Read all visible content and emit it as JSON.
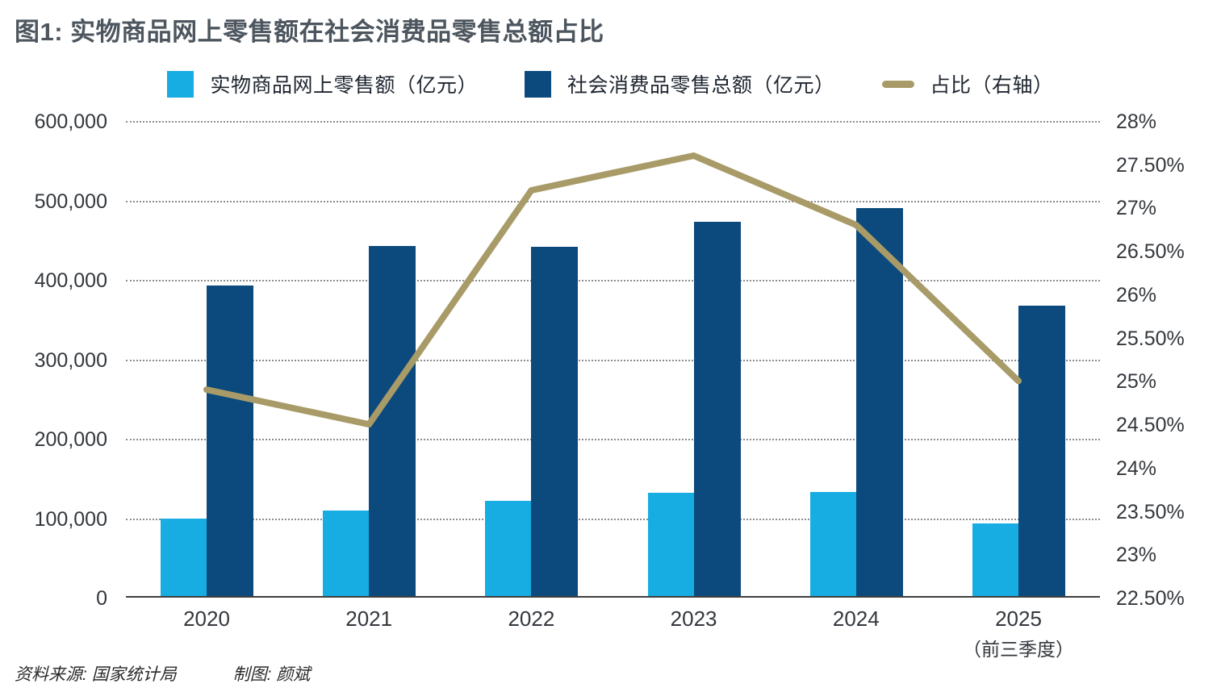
{
  "title": "图1: 实物商品网上零售额在社会消费品零售总额占比",
  "legend": [
    {
      "label": "实物商品网上零售额（亿元）",
      "marker": "square",
      "color": "#17ade2"
    },
    {
      "label": "社会消费品零售总额（亿元）",
      "marker": "square",
      "color": "#0c4a7d"
    },
    {
      "label": "占比（右轴）",
      "marker": "dash",
      "color": "#a89b68"
    }
  ],
  "footer": {
    "source": "资料来源: 国家统计局",
    "credit": "制图: 颜斌"
  },
  "colors": {
    "bar_light": "#17ade2",
    "bar_dark": "#0c4a7d",
    "line": "#a89b68",
    "title_text": "#4d565e",
    "axis_text": "#33383d"
  },
  "chart_data": {
    "type": "bar",
    "subtype": "grouped bars with overlaid line on secondary axis",
    "title": "图1: 实物商品网上零售额在社会消费品零售总额占比",
    "categories": [
      "2020",
      "2021",
      "2022",
      "2023",
      "2024",
      "2025"
    ],
    "category_note": {
      "index": 5,
      "label": "（前三季度）"
    },
    "series": [
      {
        "name": "实物商品网上零售额（亿元）",
        "type": "bar",
        "axis": "left",
        "color": "#17ade2",
        "values": [
          97600,
          108000,
          119600,
          130200,
          131000,
          91000
        ]
      },
      {
        "name": "社会消费品零售总额（亿元）",
        "type": "bar",
        "axis": "left",
        "color": "#0c4a7d",
        "values": [
          391000,
          441000,
          440000,
          471000,
          488000,
          366000
        ]
      },
      {
        "name": "占比（右轴）",
        "type": "line",
        "axis": "right",
        "color": "#a89b68",
        "values": [
          24.9,
          24.5,
          27.2,
          27.6,
          26.8,
          25.0
        ]
      }
    ],
    "left_axis": {
      "min": 0,
      "max": 600000,
      "tick_labels": [
        "600,000",
        "500,000",
        "400,000",
        "300,000",
        "200,000",
        "100,000",
        "0"
      ]
    },
    "right_axis": {
      "min": 22.5,
      "max": 28,
      "tick_labels": [
        "28%",
        "27.50%",
        "27%",
        "26.50%",
        "26%",
        "25.50%",
        "25%",
        "24.50%",
        "24%",
        "23.50%",
        "23%",
        "22.50%"
      ]
    },
    "grid": "horizontal dotted lines at left-axis ticks",
    "legend_position": "top center"
  }
}
